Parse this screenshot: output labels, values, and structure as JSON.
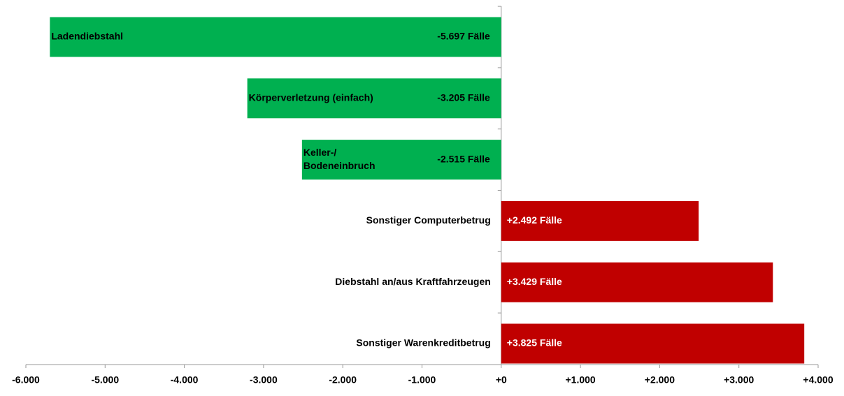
{
  "chart_data": {
    "type": "barh",
    "categories": [
      "Ladendiebstahl",
      "Körperverletzung (einfach)",
      "Keller-/\nBodeneinbruch",
      "Sonstiger Computerbetrug",
      "Diebstahl an/aus Kraftfahrzeugen",
      "Sonstiger Warenkreditbetrug"
    ],
    "values": [
      -5697,
      -3205,
      -2515,
      2492,
      3429,
      3825
    ],
    "value_labels": [
      "-5.697 Fälle",
      "-3.205 Fälle",
      "-2.515 Fälle",
      "+2.492 Fälle",
      "+3.429 Fälle",
      "+3.825 Fälle"
    ],
    "colors": [
      "#00b050",
      "#00b050",
      "#00b050",
      "#c00000",
      "#c00000",
      "#c00000"
    ],
    "xlim": [
      -6000,
      4000
    ],
    "xticks": [
      {
        "value": -6000,
        "label": "-6.000"
      },
      {
        "value": -5000,
        "label": "-5.000"
      },
      {
        "value": -4000,
        "label": "-4.000"
      },
      {
        "value": -3000,
        "label": "-3.000"
      },
      {
        "value": -2000,
        "label": "-2.000"
      },
      {
        "value": -1000,
        "label": "-1.000"
      },
      {
        "value": 0,
        "label": "+0"
      },
      {
        "value": 1000,
        "label": "+1.000"
      },
      {
        "value": 2000,
        "label": "+2.000"
      },
      {
        "value": 3000,
        "label": "+3.000"
      },
      {
        "value": 4000,
        "label": "+4.000"
      }
    ],
    "grid": false
  }
}
